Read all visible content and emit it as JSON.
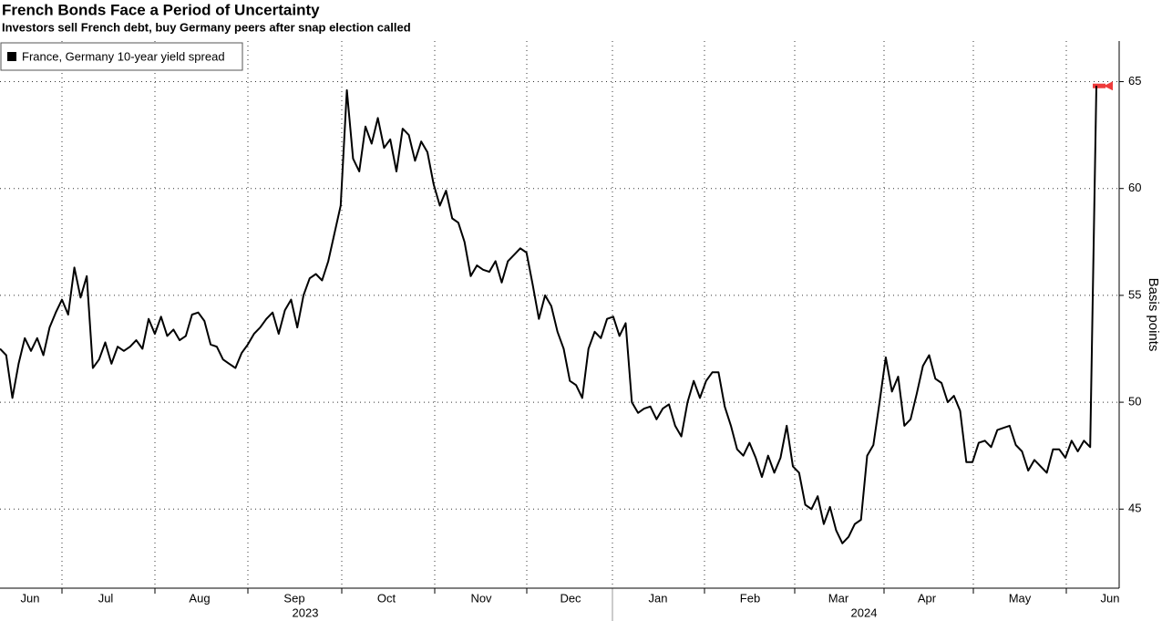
{
  "chart_data": {
    "type": "line",
    "title": "French Bonds Face a Period of Uncertainty",
    "subtitle": "Investors sell French debt, buy Germany peers after snap election called",
    "y_label": "Basis points",
    "x_month_labels": [
      "Jun",
      "Jul",
      "Aug",
      "Sep",
      "Oct",
      "Nov",
      "Dec",
      "Jan",
      "Feb",
      "Mar",
      "Apr",
      "May",
      "Jun"
    ],
    "x_year_labels": [
      "2023",
      "2024"
    ],
    "series": [
      {
        "name": "France, Germany 10-year yield spread",
        "color": "#000000",
        "values": [
          52.5,
          52.2,
          50.2,
          51.8,
          53.0,
          52.4,
          53.0,
          52.2,
          53.5,
          54.2,
          54.8,
          54.1,
          56.3,
          54.9,
          55.9,
          51.6,
          52.0,
          52.8,
          51.8,
          52.6,
          52.4,
          52.6,
          52.9,
          52.5,
          53.9,
          53.2,
          54.0,
          53.1,
          53.4,
          52.9,
          53.1,
          54.1,
          54.2,
          53.8,
          52.7,
          52.6,
          52.0,
          51.8,
          51.6,
          52.3,
          52.7,
          53.2,
          53.5,
          53.9,
          54.2,
          53.2,
          54.3,
          54.8,
          53.5,
          55.0,
          55.8,
          56.0,
          55.7,
          56.6,
          57.9,
          59.2,
          64.6,
          61.4,
          60.8,
          62.9,
          62.1,
          63.3,
          61.9,
          62.3,
          60.8,
          62.8,
          62.5,
          61.3,
          62.2,
          61.7,
          60.2,
          59.2,
          59.9,
          58.6,
          58.4,
          57.5,
          55.9,
          56.4,
          56.2,
          56.1,
          56.6,
          55.6,
          56.6,
          56.9,
          57.2,
          57.0,
          55.5,
          53.9,
          55.0,
          54.5,
          53.3,
          52.5,
          51.0,
          50.8,
          50.2,
          52.5,
          53.3,
          53.0,
          53.9,
          54.0,
          53.1,
          53.7,
          50.0,
          49.5,
          49.7,
          49.8,
          49.2,
          49.7,
          49.9,
          48.9,
          48.4,
          50.0,
          51.0,
          50.2,
          51.0,
          51.4,
          51.4,
          49.8,
          48.9,
          47.8,
          47.5,
          48.1,
          47.4,
          46.5,
          47.5,
          46.7,
          47.4,
          48.9,
          47.0,
          46.7,
          45.2,
          45.0,
          45.6,
          44.3,
          45.1,
          44.0,
          43.4,
          43.7,
          44.3,
          44.5,
          47.5,
          48.0,
          50.0,
          52.1,
          50.5,
          51.2,
          48.9,
          49.2,
          50.4,
          51.7,
          52.2,
          51.1,
          50.9,
          50.0,
          50.3,
          49.6,
          47.2,
          47.2,
          48.1,
          48.2,
          47.9,
          48.7,
          48.8,
          48.9,
          48.0,
          47.7,
          46.8,
          47.3,
          47.0,
          46.7,
          47.8,
          47.8,
          47.4,
          48.2,
          47.7,
          48.2,
          47.9,
          64.8
        ]
      }
    ],
    "ylim": [
      41.3,
      66.9
    ],
    "yticks": [
      45,
      50,
      55,
      60,
      65
    ],
    "grid": true,
    "legend": "top-left"
  }
}
